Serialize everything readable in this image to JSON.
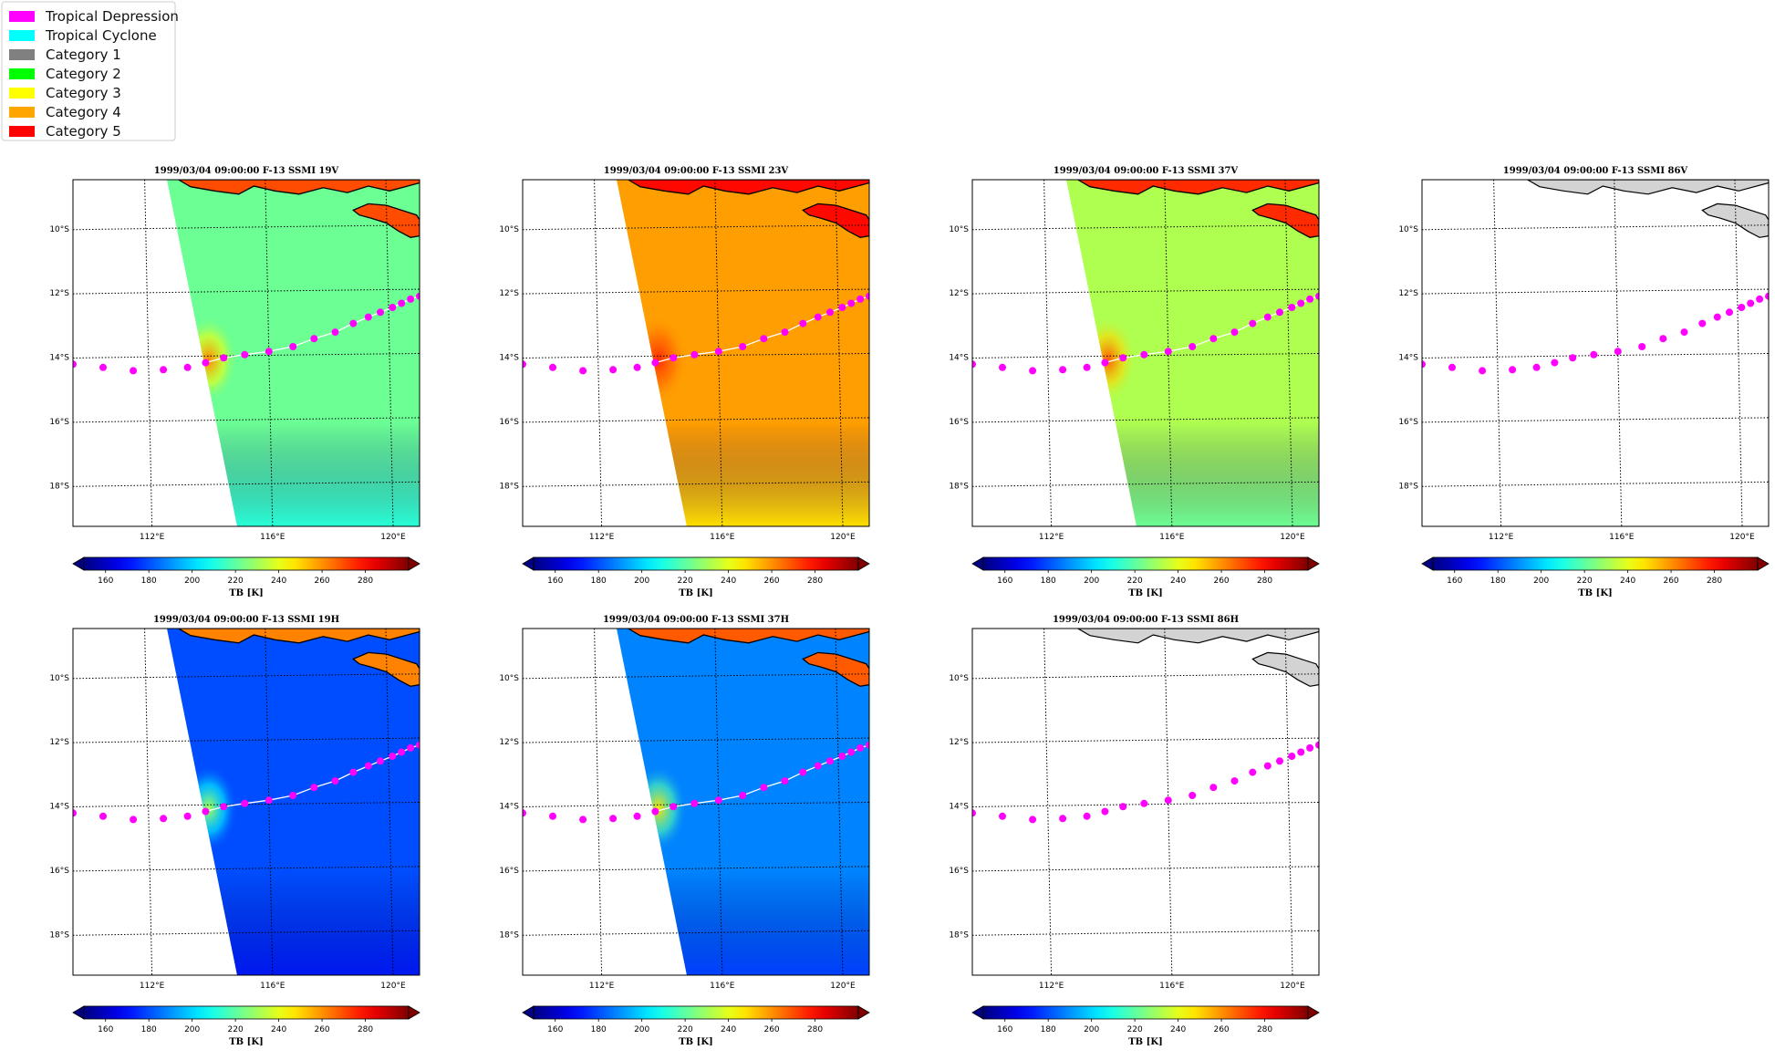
{
  "legend": {
    "items": [
      {
        "label": "Tropical Depression",
        "color": "#ff00ff"
      },
      {
        "label": "Tropical Cyclone",
        "color": "#00ffff"
      },
      {
        "label": "Category 1",
        "color": "#808080"
      },
      {
        "label": "Category 2",
        "color": "#00ff00"
      },
      {
        "label": "Category 3",
        "color": "#ffff00"
      },
      {
        "label": "Category 4",
        "color": "#ffa500"
      },
      {
        "label": "Category 5",
        "color": "#ff0000"
      }
    ]
  },
  "map": {
    "lon_range": [
      109.5,
      121.0
    ],
    "lat_range": [
      -19.3,
      -8.5
    ],
    "lat_ticks": [
      -10,
      -12,
      -14,
      -16,
      -18
    ],
    "lat_tick_labels": [
      "10°S",
      "12°S",
      "14°S",
      "16°S",
      "18°S"
    ],
    "lon_ticks": [
      112,
      116,
      120
    ],
    "lon_tick_labels": [
      "112°E",
      "116°E",
      "120°E"
    ],
    "track_color": "#ff00ff",
    "track": [
      [
        109.5,
        -14.25
      ],
      [
        110.5,
        -14.35
      ],
      [
        111.5,
        -14.45
      ],
      [
        112.5,
        -14.42
      ],
      [
        113.3,
        -14.35
      ],
      [
        113.9,
        -14.2
      ],
      [
        114.5,
        -14.05
      ],
      [
        115.2,
        -13.95
      ],
      [
        116.0,
        -13.85
      ],
      [
        116.8,
        -13.7
      ],
      [
        117.5,
        -13.45
      ],
      [
        118.2,
        -13.25
      ],
      [
        118.8,
        -12.98
      ],
      [
        119.3,
        -12.78
      ],
      [
        119.7,
        -12.63
      ],
      [
        120.1,
        -12.48
      ],
      [
        120.4,
        -12.35
      ],
      [
        120.7,
        -12.22
      ],
      [
        121.0,
        -12.13
      ]
    ]
  },
  "colorbar": {
    "min": 150,
    "max": 300,
    "ticks": [
      160,
      180,
      200,
      220,
      240,
      260,
      280
    ],
    "tick_labels": [
      "160",
      "180",
      "200",
      "220",
      "240",
      "260",
      "280"
    ],
    "label": "TB [K]"
  },
  "panels": [
    {
      "title": "1999/03/04 09:00:00  F-13 SSMI 19V",
      "mean_tb": 222,
      "warm_core_tb": 262,
      "land_tb": 270
    },
    {
      "title": "1999/03/04 09:00:00  F-13 SSMI 23V",
      "mean_tb": 258,
      "warm_core_tb": 275,
      "land_tb": 280
    },
    {
      "title": "1999/03/04 09:00:00  F-13 SSMI 37V",
      "mean_tb": 232,
      "warm_core_tb": 268,
      "land_tb": 275
    },
    {
      "title": "1999/03/04 09:00:00  F-13 SSMI 86V",
      "mean_tb": null
    },
    {
      "title": "1999/03/04 09:00:00  F-13 SSMI 19H",
      "mean_tb": 180,
      "warm_core_tb": 232,
      "land_tb": 262
    },
    {
      "title": "1999/03/04 09:00:00  F-13 SSMI 37H",
      "mean_tb": 188,
      "warm_core_tb": 248,
      "land_tb": 268
    },
    {
      "title": "1999/03/04 09:00:00  F-13 SSMI 86H",
      "mean_tb": null
    }
  ]
}
